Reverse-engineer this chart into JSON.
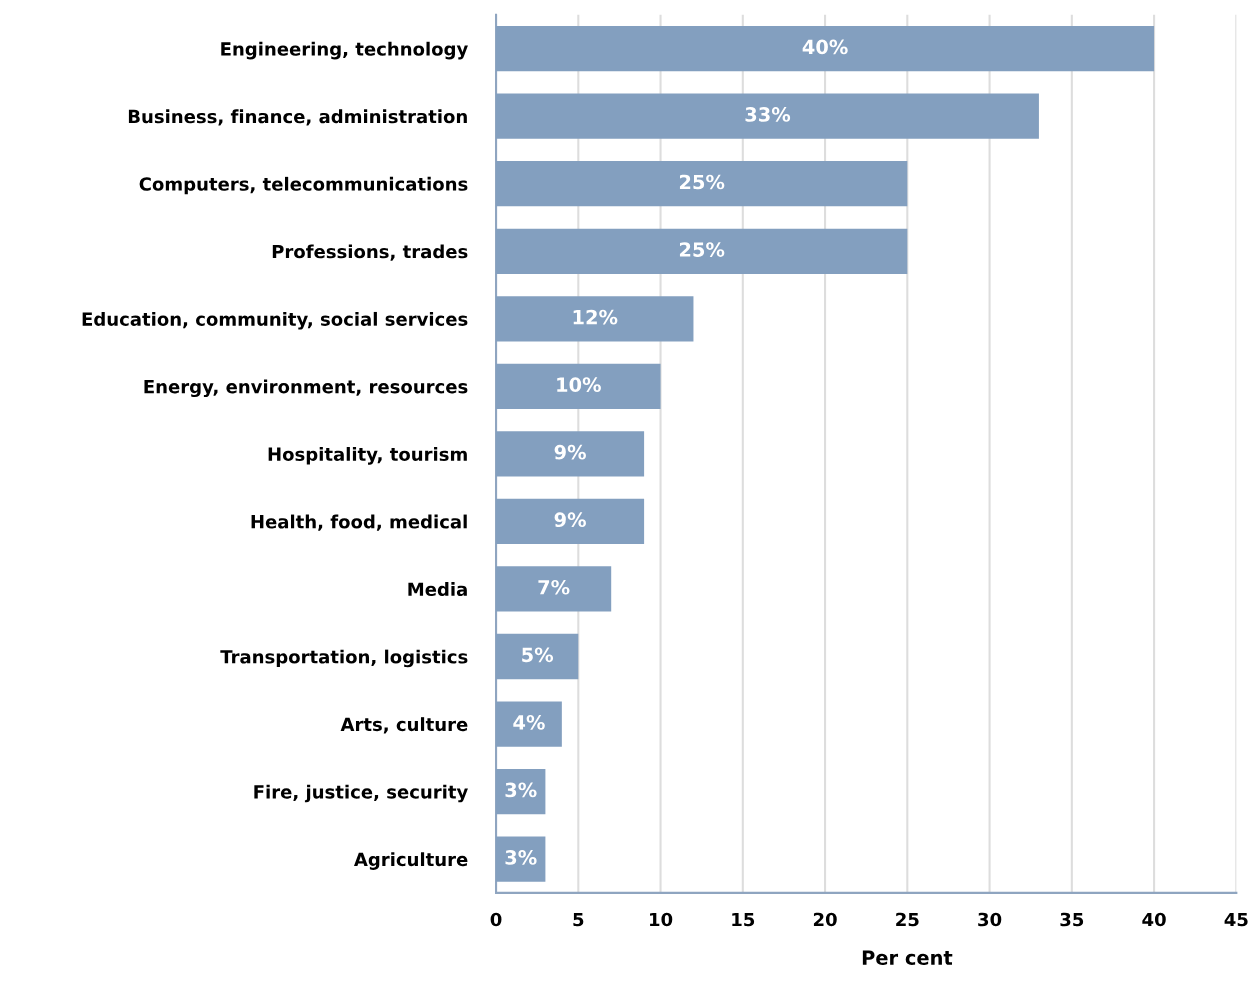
{
  "chart_data": {
    "type": "bar",
    "orientation": "horizontal",
    "categories": [
      "Engineering, technology",
      "Business, finance, administration",
      "Computers, telecommunications",
      "Professions, trades",
      "Education, community, social services",
      "Energy, environment, resources",
      "Hospitality, tourism",
      "Health, food, medical",
      "Media",
      "Transportation, logistics",
      "Arts, culture",
      "Fire, justice, security",
      "Agriculture"
    ],
    "values": [
      40,
      33,
      25,
      25,
      12,
      10,
      9,
      9,
      7,
      5,
      4,
      3,
      3
    ],
    "value_labels": [
      "40%",
      "33%",
      "25%",
      "25%",
      "12%",
      "10%",
      "9%",
      "9%",
      "7%",
      "5%",
      "4%",
      "3%",
      "3%"
    ],
    "color": "#839fbf",
    "xlabel": "Per cent",
    "xlim": [
      0,
      45
    ],
    "xticks": [
      0,
      5,
      10,
      15,
      20,
      25,
      30,
      35,
      40,
      45
    ],
    "grid": "x",
    "legend": false
  }
}
